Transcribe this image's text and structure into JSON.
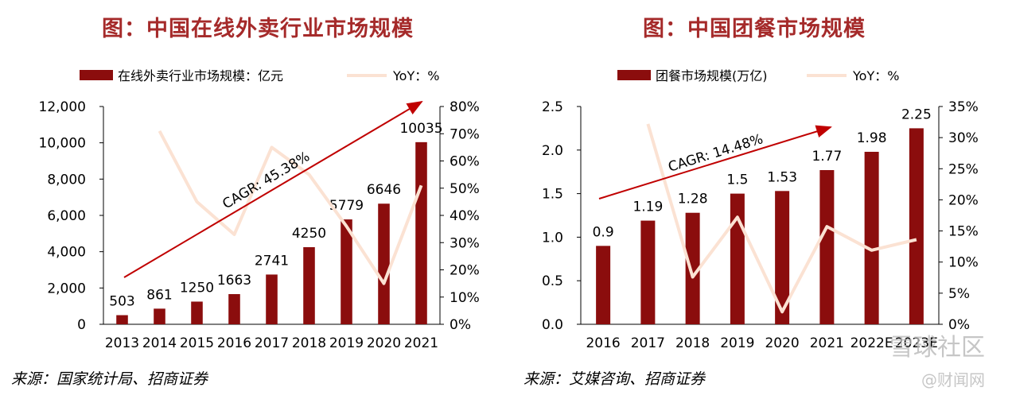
{
  "colors": {
    "bar": "#8b0d0d",
    "yoy": "#fbe2d3",
    "title": "#a52a2a",
    "arrow": "#c00000"
  },
  "left": {
    "title": "图：中国在线外卖行业市场规模",
    "source": "来源：国家统计局、招商证券",
    "chart_data": {
      "type": "bar",
      "title": "图：中国在线外卖行业市场规模",
      "categories": [
        "2013",
        "2014",
        "2015",
        "2016",
        "2017",
        "2018",
        "2019",
        "2020",
        "2021"
      ],
      "series": [
        {
          "name": "在线外卖行业市场规模：亿元",
          "axis": "left",
          "type": "bar",
          "values": [
            503,
            861,
            1250,
            1663,
            2741,
            4250,
            5779,
            6646,
            10035
          ],
          "labels": [
            "503",
            "861",
            "1250",
            "1663",
            "2741",
            "4250",
            "5779",
            "6646",
            "10035"
          ]
        },
        {
          "name": "YoY：%",
          "axis": "right",
          "type": "line",
          "values": [
            null,
            71,
            45,
            33,
            65,
            55,
            36,
            15,
            51
          ]
        }
      ],
      "left_axis": {
        "ylim": [
          0,
          12000
        ],
        "ticks": [
          "0",
          "2,000",
          "4,000",
          "6,000",
          "8,000",
          "10,000",
          "12,000"
        ]
      },
      "right_axis": {
        "ylim": [
          0,
          80
        ],
        "ticks": [
          "0%",
          "10%",
          "20%",
          "30%",
          "40%",
          "50%",
          "60%",
          "70%",
          "80%"
        ]
      },
      "annotation": "CAGR: 45.38%",
      "legend_position": "top"
    }
  },
  "right": {
    "title": "图：中国团餐市场规模",
    "source": "来源：艾媒咨询、招商证券",
    "chart_data": {
      "type": "bar",
      "title": "图：中国团餐市场规模",
      "categories": [
        "2016",
        "2017",
        "2018",
        "2019",
        "2020",
        "2021",
        "2022E",
        "2023E"
      ],
      "series": [
        {
          "name": "团餐市场规模(万亿)",
          "axis": "left",
          "type": "bar",
          "values": [
            0.9,
            1.19,
            1.28,
            1.5,
            1.53,
            1.77,
            1.98,
            2.25
          ],
          "labels": [
            "0.9",
            "1.19",
            "1.28",
            "1.5",
            "1.53",
            "1.77",
            "1.98",
            "2.25"
          ]
        },
        {
          "name": "YoY：%",
          "axis": "right",
          "type": "line",
          "values": [
            null,
            32.2,
            7.6,
            17.2,
            2.0,
            15.7,
            11.9,
            13.6
          ]
        }
      ],
      "left_axis": {
        "ylim": [
          0,
          2.5
        ],
        "ticks": [
          "0.0",
          "0.5",
          "1.0",
          "1.5",
          "2.0",
          "2.5"
        ]
      },
      "right_axis": {
        "ylim": [
          0,
          35
        ],
        "ticks": [
          "0%",
          "5%",
          "10%",
          "15%",
          "20%",
          "25%",
          "30%",
          "35%"
        ]
      },
      "annotation": "CAGR: 14.48%",
      "legend_position": "top"
    }
  },
  "watermark": {
    "community": "雪球社区",
    "site": "@财闻网"
  }
}
